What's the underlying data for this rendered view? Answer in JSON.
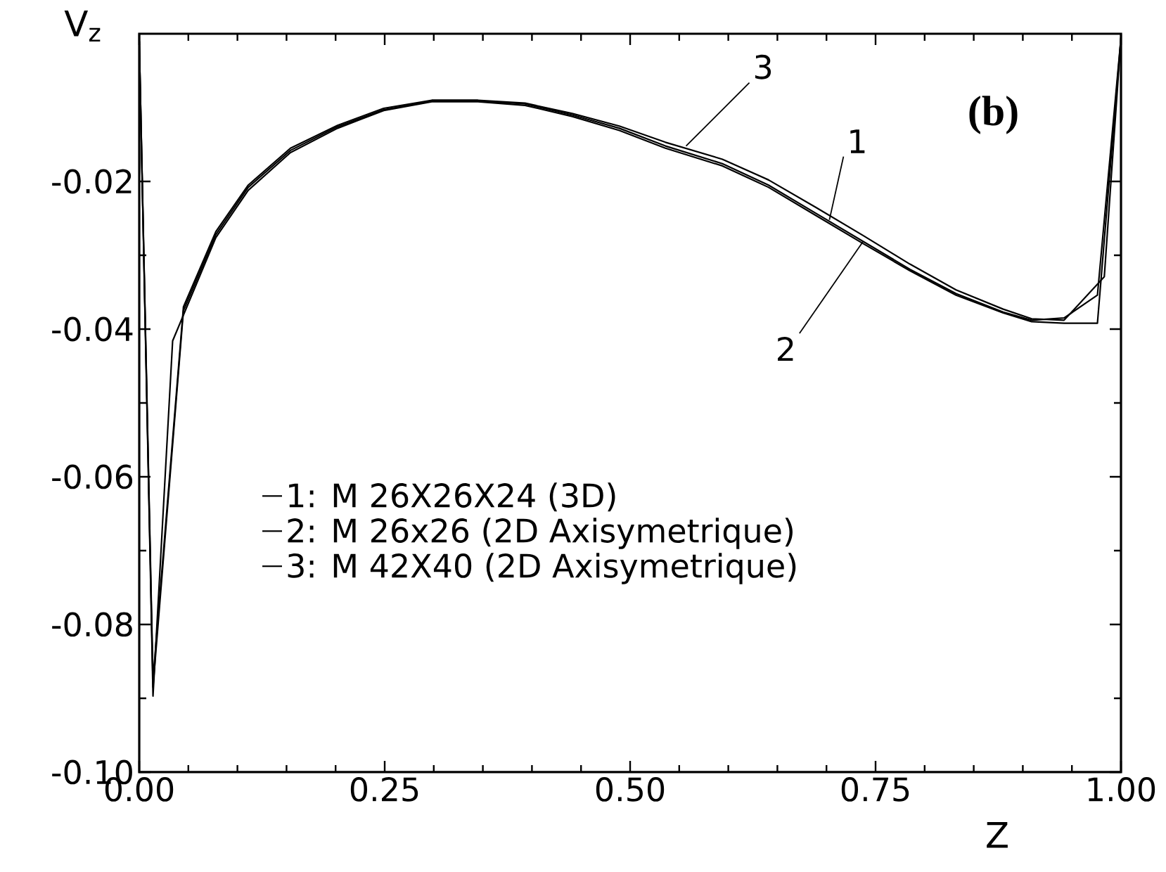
{
  "chart_data": {
    "type": "line",
    "xlabel": "Z",
    "ylabel": "V$_{z}$",
    "xlim": [
      0,
      1
    ],
    "ylim": [
      -0.1,
      0
    ],
    "xticks": [
      {
        "value": 0,
        "label": "0.00"
      },
      {
        "value": 0.25,
        "label": "0.25"
      },
      {
        "value": 0.5,
        "label": "0.50"
      },
      {
        "value": 0.75,
        "label": "0.75"
      },
      {
        "value": 1,
        "label": "1.00"
      }
    ],
    "yticks": [
      {
        "value": -0.1,
        "label": "-0.10"
      },
      -0.08,
      -0.06,
      -0.04,
      -0.02
    ],
    "grid": false,
    "legend": "bottom left",
    "marker": "none",
    "line_style": "solid",
    "series": [
      {
        "name": "1:  M 26X26X24  (3D)",
        "color": "#000000",
        "x": [
          0,
          0.014,
          0.045,
          0.078,
          0.111,
          0.154,
          0.202,
          0.249,
          0.298,
          0.345,
          0.393,
          0.441,
          0.489,
          0.536,
          0.594,
          0.641,
          0.689,
          0.737,
          0.785,
          0.832,
          0.88,
          0.909,
          0.942,
          0.976,
          1.0
        ],
        "values": [
          -0.001,
          -0.0885,
          -0.0375,
          -0.0272,
          -0.0208,
          -0.0158,
          -0.0126,
          -0.0103,
          -0.0091,
          -0.0091,
          -0.0095,
          -0.011,
          -0.0128,
          -0.0152,
          -0.0176,
          -0.0205,
          -0.0243,
          -0.0281,
          -0.0319,
          -0.0352,
          -0.0377,
          -0.0388,
          -0.0385,
          -0.0354,
          -0.0005
        ]
      },
      {
        "name": "2:  M 26x26 (2D Axisymetrique)",
        "color": "#000000",
        "x": [
          0,
          0.014,
          0.034,
          0.078,
          0.111,
          0.154,
          0.202,
          0.249,
          0.298,
          0.345,
          0.393,
          0.441,
          0.489,
          0.536,
          0.594,
          0.641,
          0.689,
          0.737,
          0.785,
          0.832,
          0.88,
          0.909,
          0.942,
          0.976,
          1.0
        ],
        "values": [
          -0.001,
          -0.0897,
          -0.0416,
          -0.0276,
          -0.0212,
          -0.0161,
          -0.0128,
          -0.0104,
          -0.0092,
          -0.0092,
          -0.0097,
          -0.0112,
          -0.0131,
          -0.0155,
          -0.0179,
          -0.0208,
          -0.0246,
          -0.0284,
          -0.0321,
          -0.0354,
          -0.0378,
          -0.039,
          -0.0392,
          -0.0392,
          -0.0005
        ]
      },
      {
        "name": "3:  M 42X40 (2D Axisymetrique)",
        "color": "#000000",
        "x": [
          0,
          0.014,
          0.045,
          0.078,
          0.111,
          0.154,
          0.202,
          0.249,
          0.298,
          0.345,
          0.393,
          0.441,
          0.489,
          0.536,
          0.594,
          0.641,
          0.689,
          0.737,
          0.785,
          0.832,
          0.88,
          0.909,
          0.942,
          0.983,
          1.0
        ],
        "values": [
          -0.001,
          -0.0875,
          -0.037,
          -0.0268,
          -0.0205,
          -0.0155,
          -0.0124,
          -0.0101,
          -0.009,
          -0.009,
          -0.0094,
          -0.0108,
          -0.0125,
          -0.0147,
          -0.017,
          -0.0198,
          -0.0235,
          -0.0273,
          -0.0312,
          -0.0347,
          -0.0373,
          -0.0386,
          -0.0388,
          -0.0329,
          -0.0005
        ]
      }
    ],
    "annotations": [
      {
        "text": "**(b)**"
      },
      {
        "text": "3",
        "x": 0.557,
        "y": -0.0152
      },
      {
        "text": "1",
        "x": 0.703,
        "y": -0.0252
      },
      {
        "text": "2",
        "x": 0.737,
        "y": -0.0282
      }
    ]
  }
}
